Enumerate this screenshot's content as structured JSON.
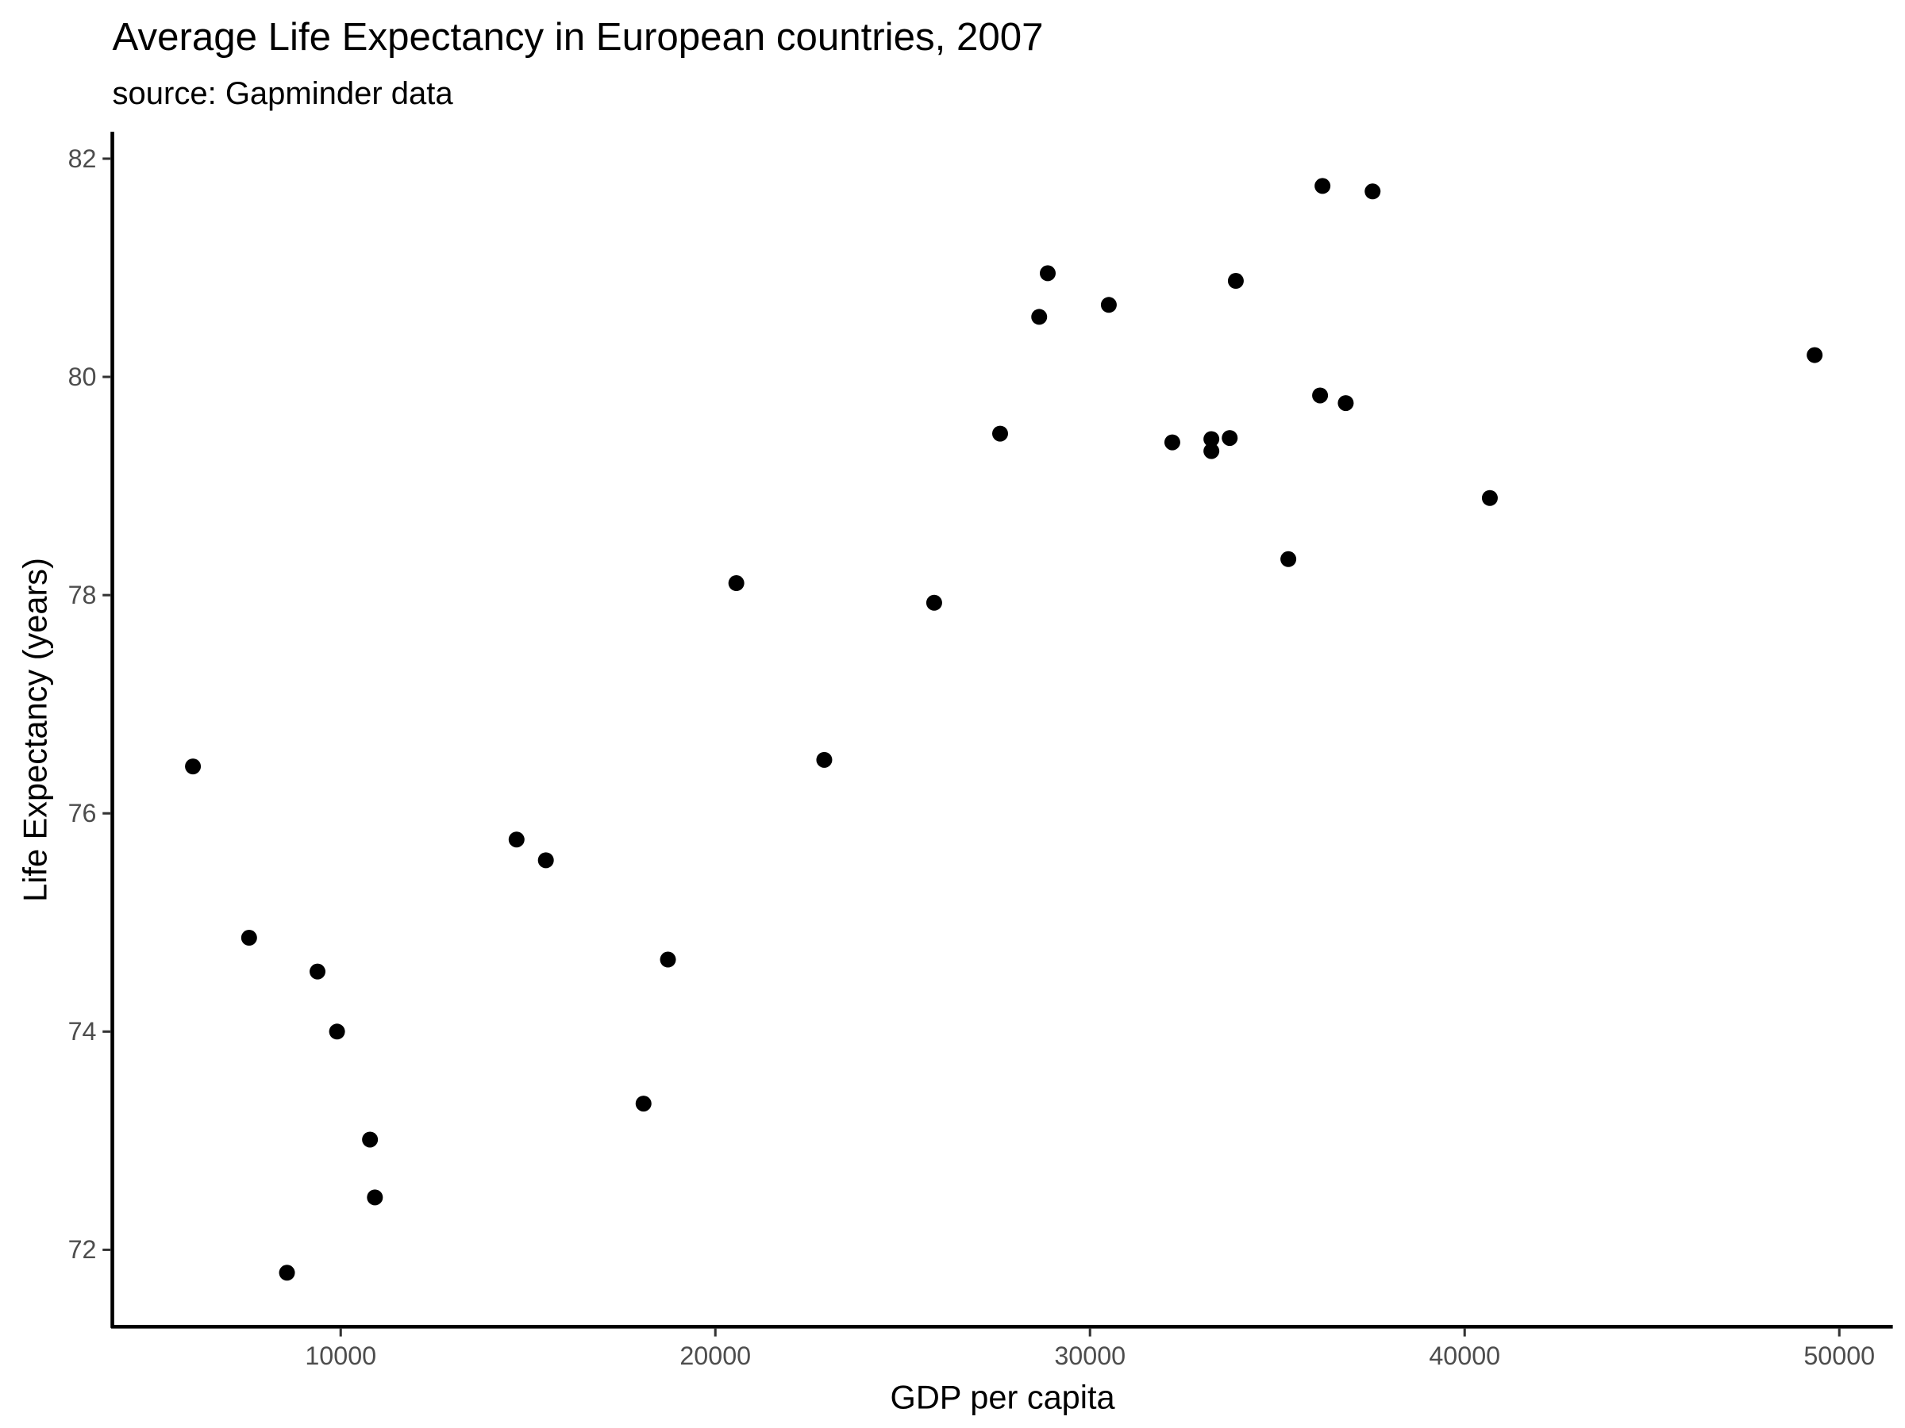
{
  "chart_data": {
    "type": "scatter",
    "title": "Average Life Expectancy in European countries, 2007",
    "subtitle": "source: Gapminder data",
    "xlabel": "GDP per capita",
    "ylabel": "Life Expectancy (years)",
    "xlim": [
      3900,
      51400
    ],
    "ylim": [
      71.3,
      82.25
    ],
    "xticks": [
      10000,
      20000,
      30000,
      40000,
      50000
    ],
    "yticks": [
      72,
      74,
      76,
      78,
      80,
      82
    ],
    "grid": false,
    "point_color": "#000000",
    "points": [
      {
        "x": 6056,
        "y": 76.43
      },
      {
        "x": 7555,
        "y": 74.86
      },
      {
        "x": 8566,
        "y": 71.79
      },
      {
        "x": 9381,
        "y": 74.55
      },
      {
        "x": 9902,
        "y": 74.0
      },
      {
        "x": 10782,
        "y": 73.01
      },
      {
        "x": 10913,
        "y": 72.48
      },
      {
        "x": 14694,
        "y": 75.76
      },
      {
        "x": 15476,
        "y": 75.57
      },
      {
        "x": 18083,
        "y": 73.34
      },
      {
        "x": 18735,
        "y": 74.66
      },
      {
        "x": 20560,
        "y": 78.11
      },
      {
        "x": 22907,
        "y": 76.49
      },
      {
        "x": 25841,
        "y": 77.93
      },
      {
        "x": 27601,
        "y": 79.48
      },
      {
        "x": 28644,
        "y": 80.55
      },
      {
        "x": 28872,
        "y": 80.95
      },
      {
        "x": 30502,
        "y": 80.66
      },
      {
        "x": 32197,
        "y": 79.4
      },
      {
        "x": 33240,
        "y": 79.43
      },
      {
        "x": 33240,
        "y": 79.32
      },
      {
        "x": 33729,
        "y": 79.44
      },
      {
        "x": 33892,
        "y": 80.88
      },
      {
        "x": 35294,
        "y": 78.33
      },
      {
        "x": 36141,
        "y": 79.83
      },
      {
        "x": 36206,
        "y": 81.75
      },
      {
        "x": 36826,
        "y": 79.76
      },
      {
        "x": 37543,
        "y": 81.7
      },
      {
        "x": 40672,
        "y": 78.89
      },
      {
        "x": 49342,
        "y": 80.2
      }
    ]
  }
}
